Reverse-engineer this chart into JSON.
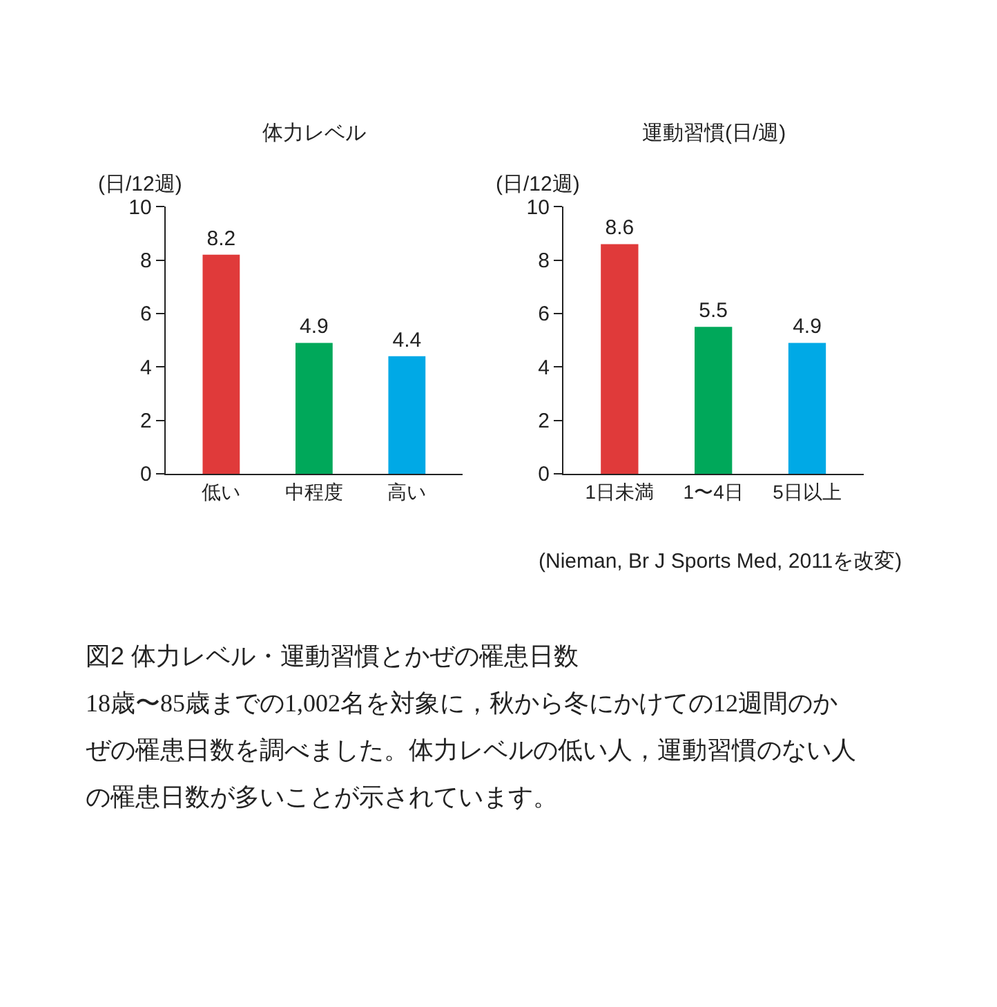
{
  "chart_data": [
    {
      "type": "bar",
      "title": "体力レベル",
      "ylabel": "(日/12週)",
      "categories": [
        "低い",
        "中程度",
        "高い"
      ],
      "values": [
        8.2,
        4.9,
        4.4
      ],
      "colors": [
        "#e03a3a",
        "#00a85a",
        "#00a9e6"
      ],
      "ylim": [
        0,
        10
      ],
      "yticks": [
        0,
        2,
        4,
        6,
        8,
        10
      ],
      "data_labels": true
    },
    {
      "type": "bar",
      "title": "運動習慣(日/週)",
      "ylabel": "(日/12週)",
      "categories": [
        "1日未満",
        "1〜4日",
        "5日以上"
      ],
      "values": [
        8.6,
        5.5,
        4.9
      ],
      "colors": [
        "#e03a3a",
        "#00a85a",
        "#00a9e6"
      ],
      "ylim": [
        0,
        10
      ],
      "yticks": [
        0,
        2,
        4,
        6,
        8,
        10
      ],
      "data_labels": true,
      "annotations": [
        "(Nieman, Br J Sports Med, 2011を改変)",
        "図2 体力レベル・運動習慣とかぜの罹患日数",
        "18歳〜85歳までの1,002名を対象に，秋から冬にかけての12週間のかぜの罹患日数を調べました。体力レベルの低い人，運動習慣のない人の罹患日数が多いことが示されています。"
      ]
    }
  ]
}
